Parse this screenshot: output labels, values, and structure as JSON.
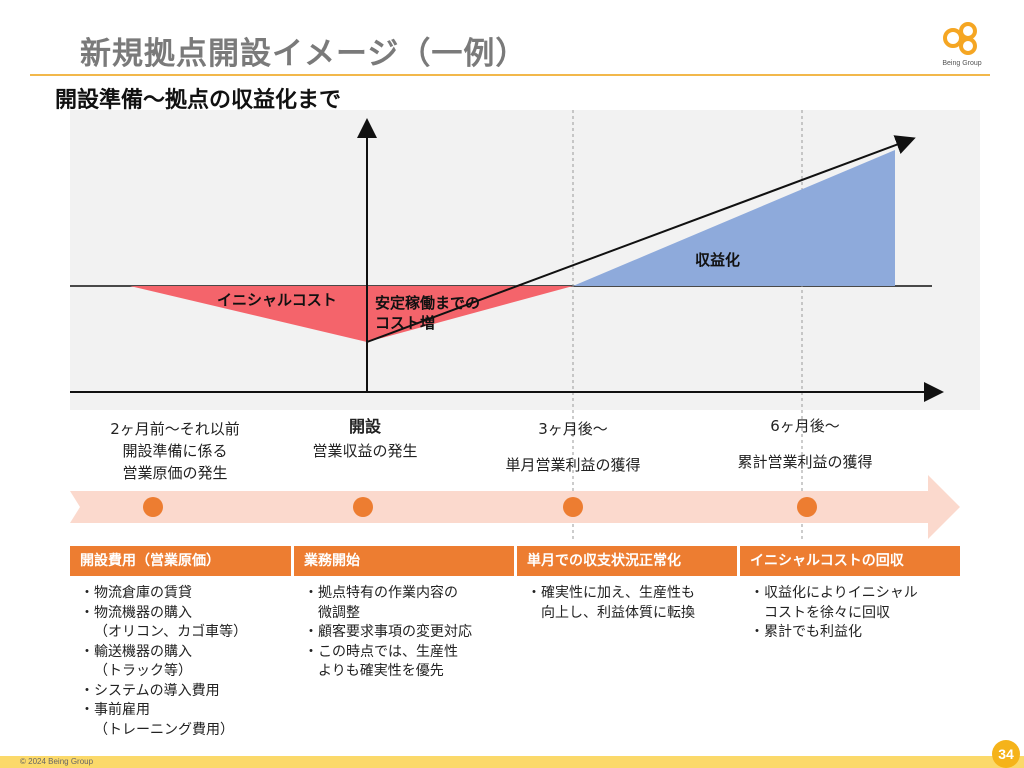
{
  "header": {
    "title": "新規拠点開設イメージ（一例）",
    "subtitle": "開設準備～拠点の収益化まで",
    "logo_text": "Being Group",
    "logo_icon": "interlocking-circles-logo"
  },
  "chart": {
    "initial_cost_label": "イニシャルコスト",
    "cost_increase_label_1": "安定稼働までの",
    "cost_increase_label_2": "コスト増",
    "profit_label": "収益化",
    "colors": {
      "cost": "#f4646b",
      "profit": "#8eaadb",
      "axis": "#111111",
      "background": "#f2f2f2"
    }
  },
  "stages": [
    {
      "lines": [
        "2ヶ月前～それ以前",
        "開設準備に係る",
        "営業原価の発生"
      ]
    },
    {
      "lines": [
        "開設",
        "営業収益の発生"
      ]
    },
    {
      "lines": [
        "3ヶ月後～",
        "単月営業利益の獲得"
      ]
    },
    {
      "lines": [
        "6ヶ月後～",
        "累計営業利益の獲得"
      ]
    }
  ],
  "phases": [
    {
      "header": "開設費用（営業原価）",
      "items": [
        "物流倉庫の賃貸",
        "物流機器の購入\n（オリコン、カゴ車等）",
        "輸送機器の購入\n（トラック等）",
        "システムの導入費用",
        "事前雇用\n（トレーニング費用）"
      ]
    },
    {
      "header": "業務開始",
      "items": [
        "拠点特有の作業内容の\n微調整",
        "顧客要求事項の変更対応",
        "この時点では、生産性\nよりも確実性を優先"
      ]
    },
    {
      "header": "単月での収支状況正常化",
      "items": [
        "確実性に加え、生産性も\n向上し、利益体質に転換"
      ]
    },
    {
      "header": "イニシャルコストの回収",
      "items": [
        "収益化によりイニシャル\nコストを徐々に回収",
        "累計でも利益化"
      ]
    }
  ],
  "footer": {
    "copyright": "© 2024 Being Group",
    "page_number": "34"
  },
  "colors": {
    "accent": "#ed7d31",
    "band": "#fbd9cd",
    "dot": "#ed7d31",
    "footer": "#fbd96a"
  }
}
